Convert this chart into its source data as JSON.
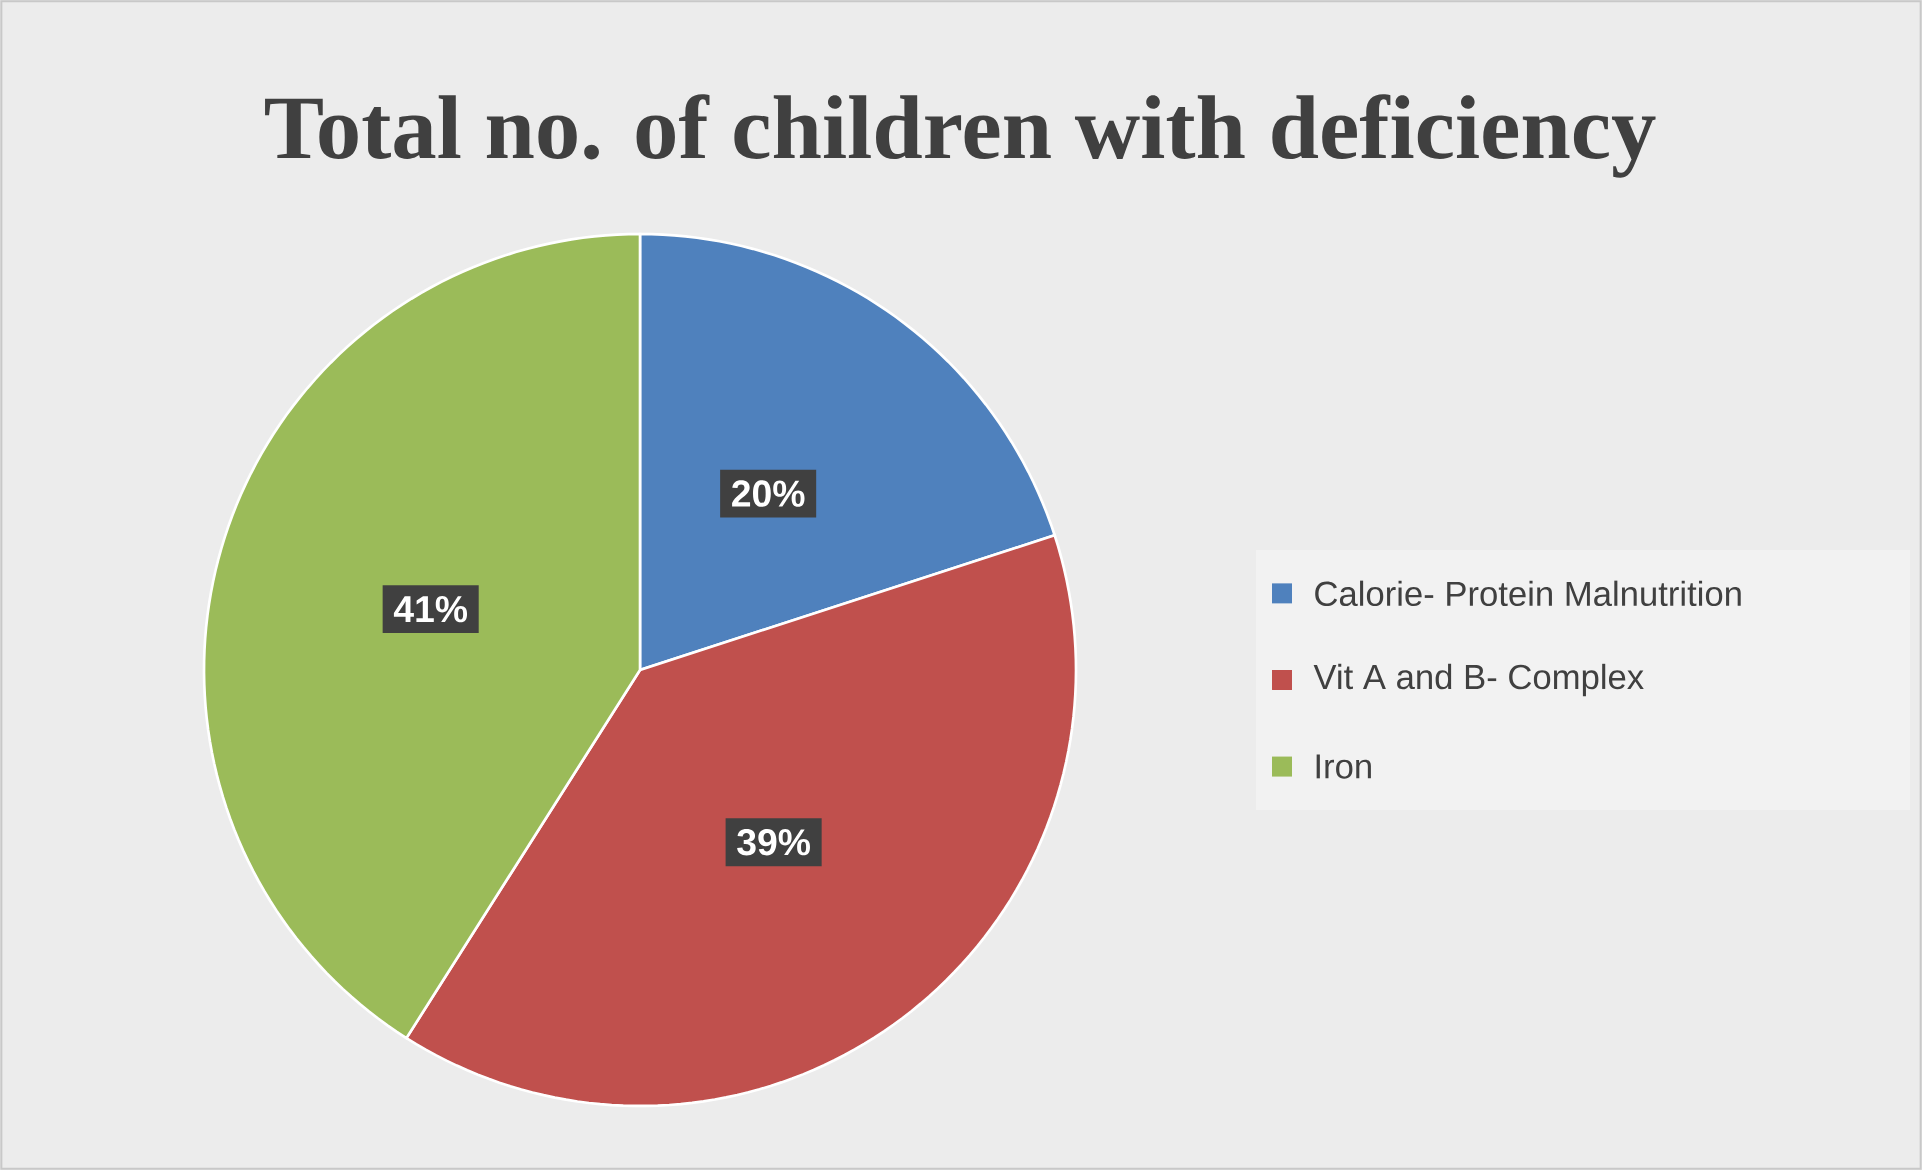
{
  "chart_data": {
    "type": "pie",
    "title": "Total no. of children with deficiency",
    "categories": [
      "Calorie- Protein Malnutrition",
      "Vit A and B- Complex",
      "Iron"
    ],
    "values": [
      20,
      39,
      41
    ],
    "colors": [
      "#4f81bd",
      "#c0504d",
      "#9bbb59"
    ],
    "value_labels": [
      "20%",
      "39%",
      "41%"
    ],
    "legend": "right"
  }
}
